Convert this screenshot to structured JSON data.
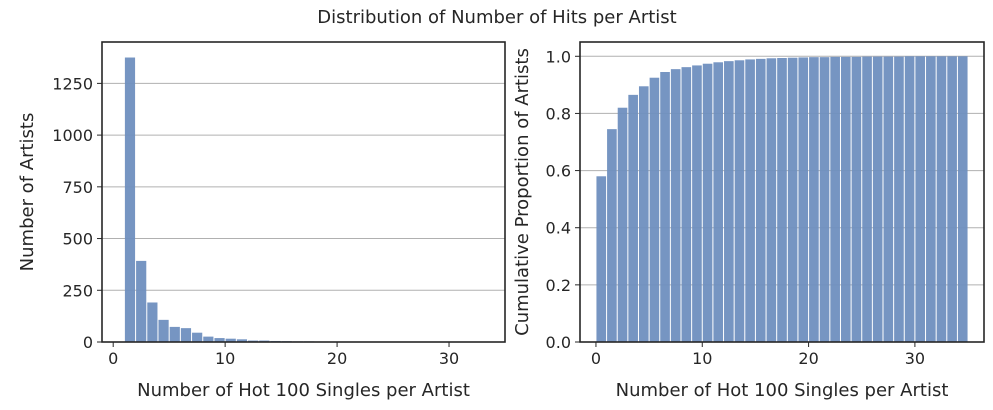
{
  "figure": {
    "title": "Distribution of Number of Hits per Artist"
  },
  "chart_data": [
    {
      "type": "bar",
      "name": "histogram-count",
      "xlabel": "Number of Hot 100 Singles per Artist",
      "ylabel": "Number of Artists",
      "xlim": [
        -1,
        35
      ],
      "ylim": [
        0,
        1450
      ],
      "xticks": [
        0,
        10,
        20,
        30
      ],
      "yticks": [
        0,
        250,
        500,
        750,
        1000,
        1250
      ],
      "grid": "horizontal",
      "bar_color": "#6f8fbf",
      "bin_starts": [
        1,
        2,
        3,
        4,
        5,
        6,
        7,
        8,
        9,
        10,
        11,
        12,
        13,
        14,
        15,
        16,
        17,
        18,
        19,
        20,
        21,
        22,
        23,
        24,
        25,
        26,
        27,
        28,
        29,
        30,
        31,
        32,
        33,
        34
      ],
      "values": [
        1375,
        392,
        191,
        107,
        73,
        67,
        45,
        26,
        19,
        16,
        13,
        7,
        7,
        5,
        4,
        3,
        3,
        2,
        2,
        2,
        1,
        1,
        1,
        1,
        1,
        1,
        1,
        1,
        1,
        1,
        1,
        1,
        1,
        1
      ]
    },
    {
      "type": "bar",
      "name": "histogram-cumulative",
      "xlabel": "Number of Hot 100 Singles per Artist",
      "ylabel": "Cumulative Proportion of Artists",
      "xlim": [
        -1.5,
        36.5
      ],
      "ylim": [
        0,
        1.05
      ],
      "xticks": [
        0,
        10,
        20,
        30
      ],
      "yticks": [
        0.0,
        0.2,
        0.4,
        0.6,
        0.8,
        1.0
      ],
      "ytick_labels": [
        "0.0",
        "0.2",
        "0.4",
        "0.6",
        "0.8",
        "1.0"
      ],
      "grid": "horizontal",
      "bar_color": "#6f8fbf",
      "bin_starts": [
        0,
        1,
        2,
        3,
        4,
        5,
        6,
        7,
        8,
        9,
        10,
        11,
        12,
        13,
        14,
        15,
        16,
        17,
        18,
        19,
        20,
        21,
        22,
        23,
        24,
        25,
        26,
        27,
        28,
        29,
        30,
        31,
        32,
        33,
        34
      ],
      "values": [
        0.58,
        0.745,
        0.82,
        0.865,
        0.895,
        0.925,
        0.945,
        0.955,
        0.962,
        0.968,
        0.974,
        0.979,
        0.983,
        0.986,
        0.989,
        0.991,
        0.993,
        0.994,
        0.995,
        0.996,
        0.997,
        0.997,
        0.998,
        0.998,
        0.998,
        0.999,
        0.999,
        0.999,
        0.999,
        1.0,
        1.0,
        1.0,
        1.0,
        1.0,
        1.0
      ]
    }
  ]
}
